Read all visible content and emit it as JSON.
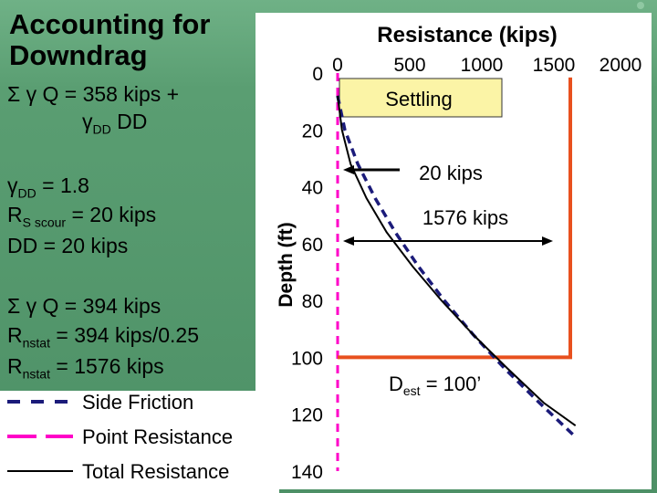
{
  "title": [
    "Accounting for",
    "Downdrag"
  ],
  "left_text": {
    "eq1_a": "Σ γ Q = 358 kips +",
    "eq1_b_gamma": "γ",
    "eq1_b_sub": "DD",
    "eq1_b_rest": " DD",
    "eq2_gamma": "γ",
    "eq2_sub": "DD",
    "eq2_rest": " = 1.8",
    "eq3_r": "R",
    "eq3_sub": "S scour",
    "eq3_rest": " = 20 kips",
    "eq4": "DD = 20 kips",
    "eq5": "Σ γ Q = 394 kips",
    "eq6_r": "R",
    "eq6_sub": "nstat",
    "eq6_rest": " = 394 kips/0.25",
    "eq7_r": "R",
    "eq7_sub": "nstat",
    "eq7_rest": " = 1576 kips"
  },
  "colors": {
    "side_friction": "#1b1b7a",
    "point_resistance": "#ff00c8",
    "total_resistance": "#000000",
    "red_lines": "#e8501e",
    "settling_box": "#fbf4a6",
    "axis_dashed": "#ff00c8"
  },
  "chart_data": {
    "type": "line",
    "title": "Resistance (kips)",
    "xlabel": "Resistance (kips)",
    "ylabel": "Depth (ft)",
    "xlim": [
      0,
      2000
    ],
    "ylim": [
      0,
      140
    ],
    "y_inverted": true,
    "x_ticks": [
      "0",
      "500",
      "1000",
      "1500",
      "2000"
    ],
    "y_ticks": [
      "0",
      "20",
      "40",
      "60",
      "80",
      "100",
      "120",
      "140"
    ],
    "series": [
      {
        "name": "Side Friction",
        "style": "dashed",
        "x": [
          0,
          50,
          140,
          260,
          400,
          560,
          740,
          940,
          1160,
          1400,
          1650
        ],
        "y": [
          8,
          20,
          32,
          44,
          56,
          68,
          80,
          92,
          104,
          116,
          128
        ]
      },
      {
        "name": "Point Resistance",
        "style": "dashed",
        "x": [
          0,
          0
        ],
        "y": [
          0,
          140
        ]
      },
      {
        "name": "Total Resistance",
        "style": "solid",
        "x": [
          0,
          30,
          90,
          200,
          340,
          520,
          720,
          940,
          1180,
          1430,
          1650
        ],
        "y": [
          8,
          20,
          32,
          44,
          56,
          68,
          80,
          92,
          104,
          116,
          124
        ]
      }
    ],
    "reference_lines": [
      {
        "orientation": "vertical",
        "x": 1576,
        "y_range": [
          8,
          100
        ]
      },
      {
        "orientation": "horizontal",
        "y": 100,
        "x_range": [
          0,
          1576
        ]
      }
    ],
    "annotations": [
      {
        "text": "Settling",
        "x": 500,
        "y": 9
      },
      {
        "text": "20 kips",
        "arrow_from": [
          0,
          35
        ],
        "arrow_to": [
          20,
          35
        ]
      },
      {
        "text": "1576 kips",
        "arrow_from": [
          20,
          59
        ],
        "arrow_to": [
          1576,
          59
        ]
      },
      {
        "text": "D",
        "sub": "est",
        "rest": " = 100’"
      }
    ],
    "legend": [
      "Side Friction",
      "Point Resistance",
      "Total Resistance"
    ]
  }
}
